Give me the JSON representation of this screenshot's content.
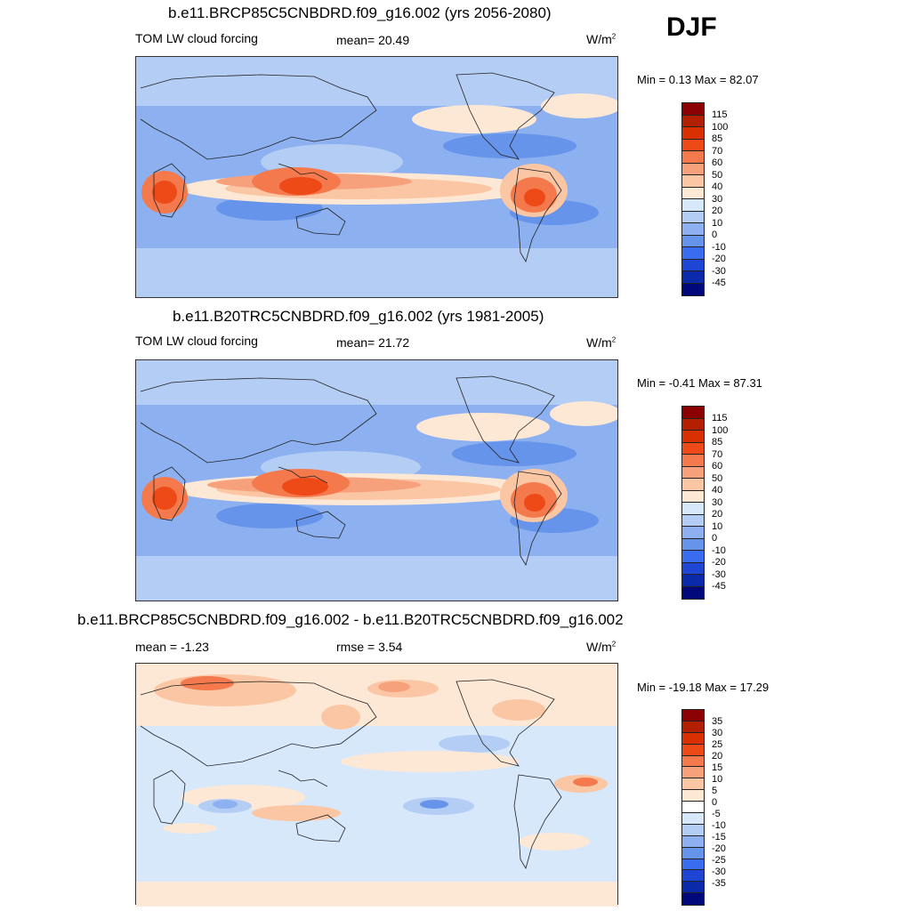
{
  "season": "DJF",
  "units_main": "W/m",
  "units_sup": "2",
  "panels": [
    {
      "title": "b.e11.BRCP85C5CNBDRD.f09_g16.002 (yrs 2056-2080)",
      "left": "TOM LW cloud forcing",
      "middle": "mean=  20.49",
      "minmax": "Min =   0.13 Max =  82.07",
      "labels": [
        "115",
        "100",
        "85",
        "70",
        "60",
        "50",
        "40",
        "30",
        "20",
        "10",
        "0",
        "-10",
        "-20",
        "-30",
        "-45"
      ]
    },
    {
      "title": "b.e11.B20TRC5CNBDRD.f09_g16.002 (yrs 1981-2005)",
      "left": "TOM LW cloud forcing",
      "middle": "mean=  21.72",
      "minmax": "Min =  -0.41 Max =  87.31",
      "labels": [
        "115",
        "100",
        "85",
        "70",
        "60",
        "50",
        "40",
        "30",
        "20",
        "10",
        "0",
        "-10",
        "-20",
        "-30",
        "-45"
      ]
    },
    {
      "title": "b.e11.BRCP85C5CNBDRD.f09_g16.002 - b.e11.B20TRC5CNBDRD.f09_g16.002",
      "left": "mean =  -1.23",
      "middle": "rmse =   3.54",
      "minmax": "Min = -19.18 Max =  17.29",
      "labels": [
        "35",
        "30",
        "25",
        "20",
        "15",
        "10",
        "5",
        "0",
        "-5",
        "-10",
        "-15",
        "-20",
        "-25",
        "-30",
        "-35"
      ]
    }
  ],
  "colors": {
    "abs": [
      "#8b0000",
      "#b22000",
      "#d83000",
      "#ee4a18",
      "#f47a4e",
      "#f7a07c",
      "#fbc6a4",
      "#fde8d6",
      "#d8e8fb",
      "#b4cdf4",
      "#8cb0f0",
      "#6594ea",
      "#3a6cf0",
      "#1f45d4",
      "#0a2aaa",
      "#00087a"
    ],
    "diff": [
      "#8b0000",
      "#b22000",
      "#d83000",
      "#ee4a18",
      "#f47a4e",
      "#f7a07c",
      "#fbc6a4",
      "#fde8d6",
      "#ffffff",
      "#d8e8fb",
      "#b4cdf4",
      "#8cb0f0",
      "#6594ea",
      "#3a6cf0",
      "#1f45d4",
      "#0a2aaa",
      "#00087a"
    ]
  }
}
